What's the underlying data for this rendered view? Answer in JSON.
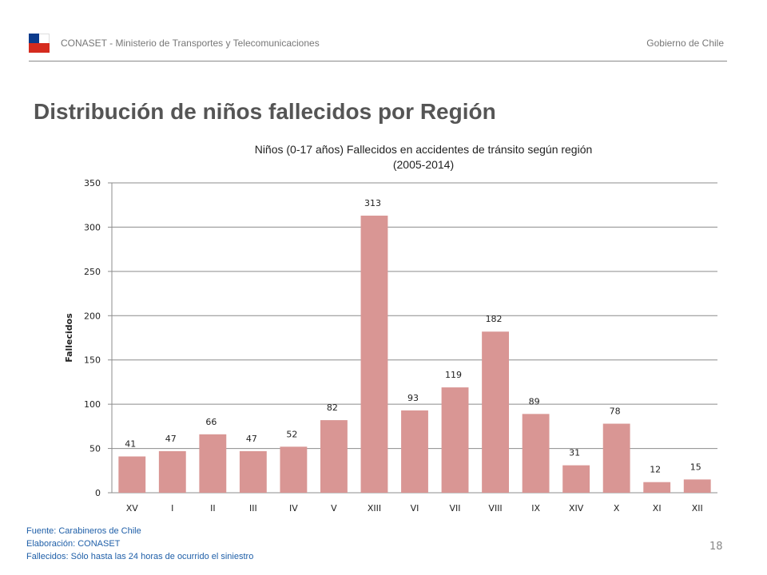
{
  "header": {
    "org": "CONASET - Ministerio de Transportes y Telecomunicaciones",
    "gov": "Gobierno de Chile"
  },
  "page_title": "Distribución de niños fallecidos por Región",
  "colors": {
    "bar": "#d99694",
    "flag_blue": "#0b3b8c",
    "flag_red": "#d52b1e"
  },
  "chart_data": {
    "type": "bar",
    "title_line1": "Niños (0-17 años) Fallecidos en accidentes de tránsito según región",
    "title_line2": "(2005-2014)",
    "xlabel": "",
    "ylabel": "Fallecidos",
    "ylim": [
      0,
      350
    ],
    "yticks": [
      0,
      50,
      100,
      150,
      200,
      250,
      300,
      350
    ],
    "grid": true,
    "legend": "none",
    "categories": [
      "XV",
      "I",
      "II",
      "III",
      "IV",
      "V",
      "XIII",
      "VI",
      "VII",
      "VIII",
      "IX",
      "XIV",
      "X",
      "XI",
      "XII"
    ],
    "values": [
      41,
      47,
      66,
      47,
      52,
      82,
      313,
      93,
      119,
      182,
      89,
      31,
      78,
      12,
      15
    ]
  },
  "footnotes": [
    "Fuente: Carabineros de Chile",
    "Elaboración: CONASET",
    "Fallecidos: Sólo hasta las 24 horas de ocurrido el siniestro"
  ],
  "page_number": "18"
}
